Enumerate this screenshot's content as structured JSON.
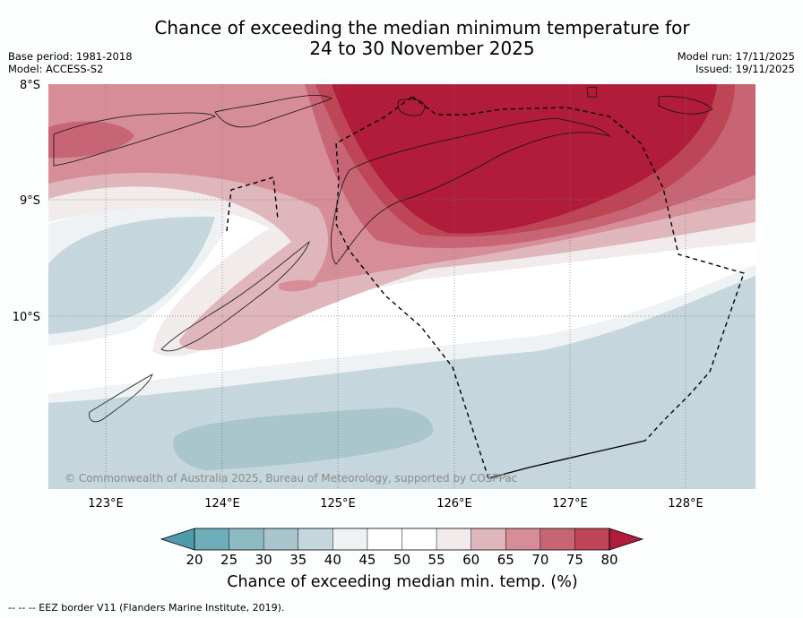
{
  "title_line1": "Chance of exceeding the median minimum temperature for",
  "title_line2": "24 to 30 November 2025",
  "base_period": "Base period: 1981-2018",
  "model": "Model: ACCESS-S2",
  "model_run": "Model run: 17/11/2025",
  "issued": "Issued: 19/11/2025",
  "lat_labels": [
    "8°S",
    "9°S",
    "10°S"
  ],
  "lon_labels": [
    "123°E",
    "124°E",
    "125°E",
    "126°E",
    "127°E",
    "128°E"
  ],
  "copyright": "© Commonwealth of Australia 2025, Bureau of Meteorology, supported by COSPPac",
  "legend": {
    "ticks": [
      "20",
      "25",
      "30",
      "35",
      "40",
      "45",
      "50",
      "55",
      "60",
      "65",
      "70",
      "75",
      "80"
    ],
    "colors": [
      "#4e9cab",
      "#6eaebb",
      "#8dbac2",
      "#a8c6cb",
      "#c5d7dc",
      "#eef2f4",
      "#ffffff",
      "#ffffff",
      "#f2ebec",
      "#e0b6bd",
      "#d68d97",
      "#c86574",
      "#bd4556",
      "#b01c3a"
    ],
    "label": "Chance of exceeding median min. temp. (%)"
  },
  "footnote": "--  --  -- EEZ border V11 (Flanders Marine Institute, 2019)."
}
